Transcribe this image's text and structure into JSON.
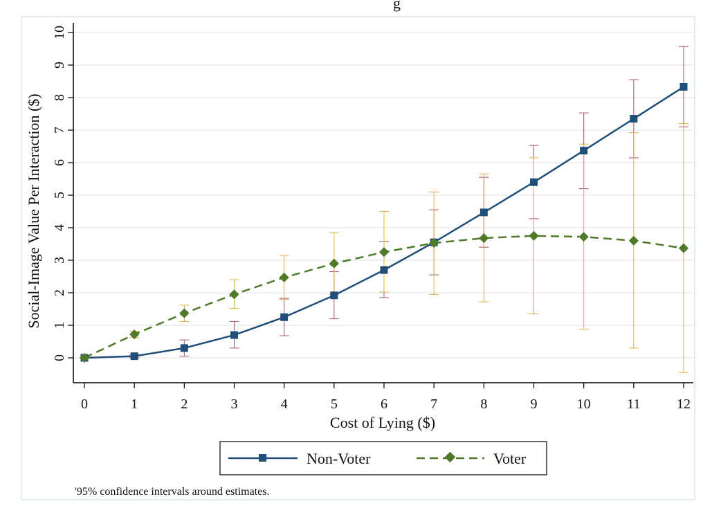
{
  "top_title_fragment": "g",
  "note": "'95% confidence intervals around estimates.",
  "colors": {
    "non_voter": "#1f4e79",
    "voter": "#4f7a28",
    "non_voter_ci": "#a3526b",
    "voter_ci": "#e0b040",
    "grid": "#e6ecef",
    "outer_border": "#e5ecf0"
  },
  "chart_data": {
    "type": "line",
    "xlabel": "Cost of Lying ($)",
    "ylabel": "Social-Image Value Per Interaction ($)",
    "xlim": [
      0,
      12
    ],
    "ylim": [
      0,
      10
    ],
    "x_ticks": [
      0,
      1,
      2,
      3,
      4,
      5,
      6,
      7,
      8,
      9,
      10,
      11,
      12
    ],
    "y_ticks": [
      0,
      1,
      2,
      3,
      4,
      5,
      6,
      7,
      8,
      9,
      10
    ],
    "grid": true,
    "legend_position": "bottom",
    "x": [
      0,
      1,
      2,
      3,
      4,
      5,
      6,
      7,
      8,
      9,
      10,
      11,
      12
    ],
    "series": [
      {
        "name": "Non-Voter",
        "marker": "square",
        "line_style": "solid",
        "values": [
          0.0,
          0.05,
          0.3,
          0.7,
          1.25,
          1.92,
          2.7,
          3.55,
          4.47,
          5.4,
          6.37,
          7.35,
          8.33
        ],
        "ci_low": [
          0.0,
          0.0,
          0.05,
          0.3,
          0.68,
          1.2,
          1.85,
          2.55,
          3.4,
          4.28,
          5.2,
          6.15,
          7.1
        ],
        "ci_high": [
          0.0,
          0.1,
          0.55,
          1.12,
          1.83,
          2.65,
          3.58,
          4.55,
          5.55,
          6.53,
          7.53,
          8.55,
          9.57
        ]
      },
      {
        "name": "Voter",
        "marker": "diamond",
        "line_style": "dashed",
        "values": [
          0.0,
          0.72,
          1.37,
          1.95,
          2.47,
          2.9,
          3.25,
          3.53,
          3.68,
          3.75,
          3.72,
          3.6,
          3.37
        ],
        "ci_low": [
          0.0,
          0.62,
          1.12,
          1.52,
          1.8,
          1.95,
          2.02,
          1.95,
          1.72,
          1.35,
          0.88,
          0.3,
          -0.45
        ],
        "ci_high": [
          0.0,
          0.82,
          1.62,
          2.4,
          3.15,
          3.85,
          4.5,
          5.1,
          5.65,
          6.15,
          6.57,
          6.92,
          7.2
        ]
      }
    ]
  }
}
